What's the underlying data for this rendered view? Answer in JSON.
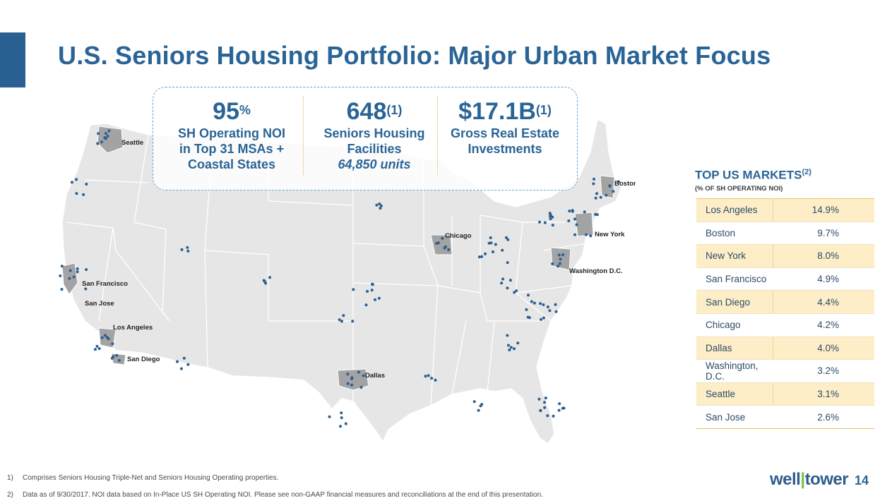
{
  "header": {
    "title": "U.S. Seniors Housing Portfolio: Major Urban Market Focus"
  },
  "stats": [
    {
      "value": "95",
      "sup": "%",
      "lines": [
        "SH Operating NOI",
        "in Top 31 MSAs +",
        "Coastal States"
      ],
      "italic_line": ""
    },
    {
      "value": "648",
      "sup": "(1)",
      "lines": [
        "Seniors Housing",
        "Facilities"
      ],
      "italic_line": "64,850 units"
    },
    {
      "value": "$17.1B",
      "sup": "(1)",
      "lines": [
        "Gross Real Estate",
        "Investments"
      ],
      "italic_line": ""
    }
  ],
  "map": {
    "labels": [
      "Seattle",
      "San Francisco",
      "San Jose",
      "Los Angeles",
      "San Diego",
      "Dallas",
      "Chicago",
      "Boston",
      "New York",
      "Washington D.C."
    ],
    "colors": {
      "land": "#e6e6e6",
      "border": "#ffffff",
      "region": "#a3a3a3",
      "dot": "#2a5f92"
    }
  },
  "markets": {
    "title": "TOP US MARKETS",
    "title_sup": "(2)",
    "subtitle": "(% OF SH OPERATING NOI)",
    "rows": [
      {
        "name": "Los Angeles",
        "value": "14.9%"
      },
      {
        "name": "Boston",
        "value": "9.7%"
      },
      {
        "name": "New York",
        "value": "8.0%"
      },
      {
        "name": "San Francisco",
        "value": "4.9%"
      },
      {
        "name": "San Diego",
        "value": "4.4%"
      },
      {
        "name": "Chicago",
        "value": "4.2%"
      },
      {
        "name": "Dallas",
        "value": "4.0%"
      },
      {
        "name": "Washington, D.C.",
        "value": "3.2%"
      },
      {
        "name": "Seattle",
        "value": "3.1%"
      },
      {
        "name": "San Jose",
        "value": "2.6%"
      }
    ]
  },
  "footnotes": [
    {
      "num": "1)",
      "text": "Comprises Seniors Housing Triple-Net and Seniors Housing Operating properties."
    },
    {
      "num": "2)",
      "text": "Data as of 9/30/2017. NOI data based on In-Place US SH Operating NOI. Please see non-GAAP financial measures and reconciliations at the end of this presentation."
    }
  ],
  "footer": {
    "logo_left": "well",
    "logo_right": "tower",
    "page_number": "14"
  },
  "colors": {
    "accent": "#2a5f92",
    "title": "#2a6496",
    "table_shade": "#fdeec8",
    "logo_green": "#78c043"
  }
}
